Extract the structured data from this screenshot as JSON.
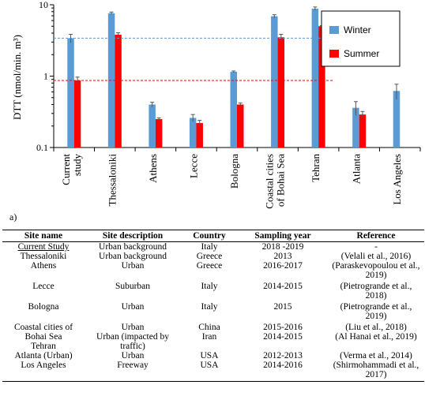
{
  "chart_data": {
    "type": "bar",
    "ylabel": "DTT (nmol/min. m³)",
    "yscale": "log",
    "ylim": [
      0.1,
      10
    ],
    "yticks": [
      {
        "value": 0.1,
        "label": "0.1"
      },
      {
        "value": 1,
        "label": "1"
      },
      {
        "value": 10,
        "label": "10"
      }
    ],
    "categories": [
      "Current study",
      "Thessaloniki",
      "Athens",
      "Lecce",
      "Bologna",
      "Coastal cities of Bohai Sea",
      "Tehran",
      "Atlanta",
      "Los Angeles"
    ],
    "category_lines": [
      [
        "Current",
        "study"
      ],
      [
        "Thessaloniki"
      ],
      [
        "Athens"
      ],
      [
        "Lecce"
      ],
      [
        "Bologna"
      ],
      [
        "Coastal cities",
        "of Bohai Sea"
      ],
      [
        "Tehran"
      ],
      [
        "Atlanta"
      ],
      [
        "Los Angeles"
      ]
    ],
    "series": [
      {
        "name": "Winter",
        "color": "#5b9bd5",
        "values": [
          3.4,
          7.6,
          0.4,
          0.26,
          1.15,
          6.9,
          8.8,
          0.36,
          0.62
        ],
        "err": [
          0.45,
          0.3,
          0.03,
          0.03,
          0.03,
          0.35,
          0.5,
          0.08,
          0.15
        ]
      },
      {
        "name": "Summer",
        "color": "#ff0000",
        "values": [
          0.87,
          3.8,
          0.25,
          0.22,
          0.4,
          3.5,
          5.0,
          0.29,
          null
        ],
        "err": [
          0.1,
          0.25,
          0.01,
          0.02,
          0.02,
          0.35,
          0.1,
          0.03,
          null
        ]
      }
    ],
    "reference_lines": [
      {
        "value": 3.4,
        "color": "#5b9bd5",
        "style": "dashed"
      },
      {
        "value": 0.87,
        "color": "#ff0000",
        "style": "dashed"
      }
    ],
    "legend": {
      "placement": "top-right"
    },
    "grid": false
  },
  "panel_label": "a)",
  "table": {
    "headers": [
      "Site name",
      "Site description",
      "Country",
      "Sampling year",
      "Reference"
    ],
    "rows": [
      {
        "site": "Current Study",
        "desc": "Urban background",
        "country": "Italy",
        "year": "2018 -2019",
        "ref": "-",
        "ref2": ""
      },
      {
        "site": "Thessaloniki",
        "desc": "Urban background",
        "country": "Greece",
        "year": "2013",
        "ref": "(Velali et al., 2016)",
        "ref2": ""
      },
      {
        "site": "Athens",
        "desc": "Urban",
        "country": "Greece",
        "year": "2016-2017",
        "ref": "(Paraskevopoulou et al.,",
        "ref2": "2019)"
      },
      {
        "site": "Lecce",
        "desc": "Suburban",
        "country": "Italy",
        "year": "2014-2015",
        "ref": "(Pietrogrande et al.,",
        "ref2": "2018)"
      },
      {
        "site": "Bologna",
        "desc": "Urban",
        "country": "Italy",
        "year": "2015",
        "ref": "(Pietrogrande et al.,",
        "ref2": "2019)"
      },
      {
        "site": "Coastal cities of",
        "desc": "Urban",
        "country": "China",
        "year": "2015-2016",
        "ref": "(Liu et al., 2018)",
        "ref2": ""
      },
      {
        "site": "Bohai Sea",
        "desc": "Urban (impacted by",
        "country": "Iran",
        "year": "2014-2015",
        "ref": "(Al Hanai et al., 2019)",
        "ref2": ""
      },
      {
        "site": "Tehran",
        "desc": "traffic)",
        "country": "",
        "year": "",
        "ref": "",
        "ref2": ""
      },
      {
        "site": "Atlanta (Urban)",
        "desc": "Urban",
        "country": "USA",
        "year": "2012-2013",
        "ref": "(Verma et al., 2014)",
        "ref2": ""
      },
      {
        "site": "Los Angeles",
        "desc": "Freeway",
        "country": "USA",
        "year": "2014-2016",
        "ref": "(Shirmohammadi et al.,",
        "ref2": "2017)"
      }
    ]
  }
}
